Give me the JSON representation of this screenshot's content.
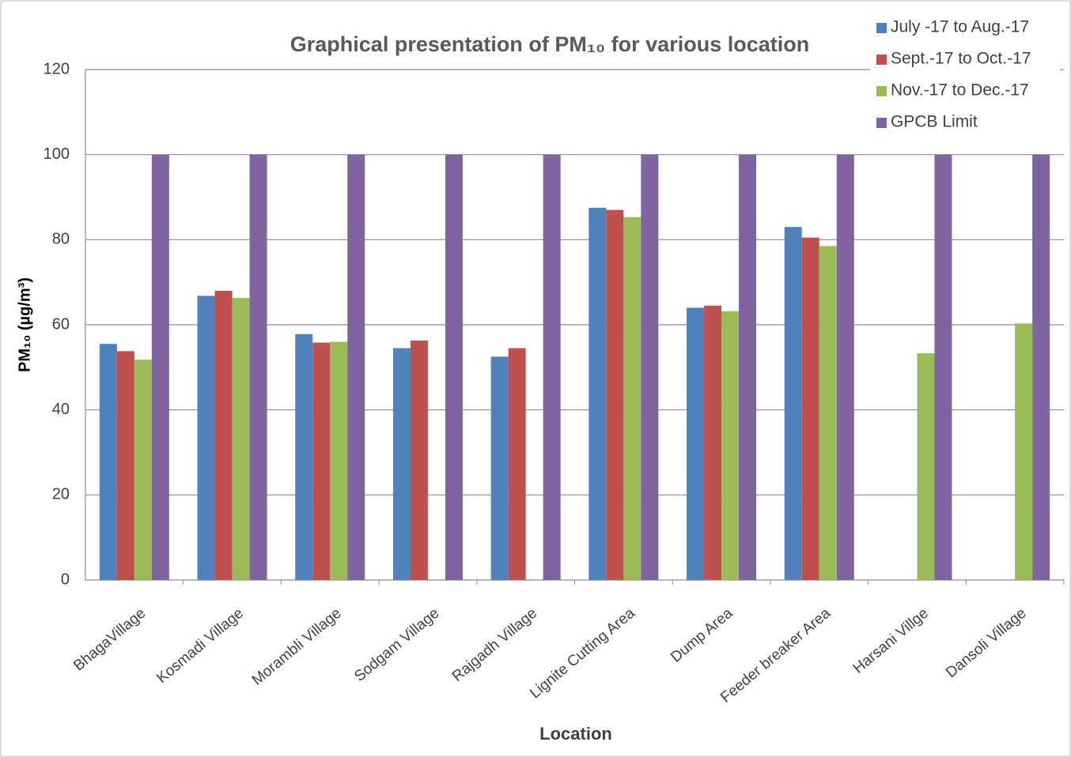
{
  "chart_data": {
    "type": "bar",
    "title": "Graphical presentation of PM₁₀ for various location",
    "x_label": "Location",
    "y_label": "PM₁₀ (µg/m³)",
    "categories": [
      "BhagaVillage",
      "Kosmadi Village",
      "Morambli Village",
      "Sodgam Village",
      "Rajgadh Village",
      "Lignite Cutting Area",
      "Dump Area",
      "Feeder breaker Area",
      "Harsani Villge",
      "Dansoli Village"
    ],
    "series": [
      {
        "name": "July -17 to Aug.-17",
        "color": "#4f81bd",
        "values": [
          55.5,
          66.8,
          57.8,
          54.5,
          52.5,
          87.5,
          64,
          83,
          null,
          null
        ]
      },
      {
        "name": "Sept.-17 to Oct.-17",
        "color": "#c0504d",
        "values": [
          53.8,
          68,
          55.8,
          56.3,
          54.5,
          87,
          64.5,
          80.5,
          null,
          null
        ]
      },
      {
        "name": "Nov.-17 to Dec.-17",
        "color": "#9bbb59",
        "values": [
          51.8,
          66.3,
          56,
          null,
          null,
          85.3,
          63.2,
          78.5,
          53.3,
          60.3
        ]
      },
      {
        "name": "GPCB Limit",
        "color": "#8064a2",
        "values": [
          100,
          100,
          100,
          100,
          100,
          100,
          100,
          100,
          100,
          100
        ]
      }
    ],
    "ylim": [
      0,
      120
    ],
    "yticks": [
      0,
      20,
      40,
      60,
      80,
      100,
      120
    ],
    "grid": true,
    "legend": "top-right"
  }
}
